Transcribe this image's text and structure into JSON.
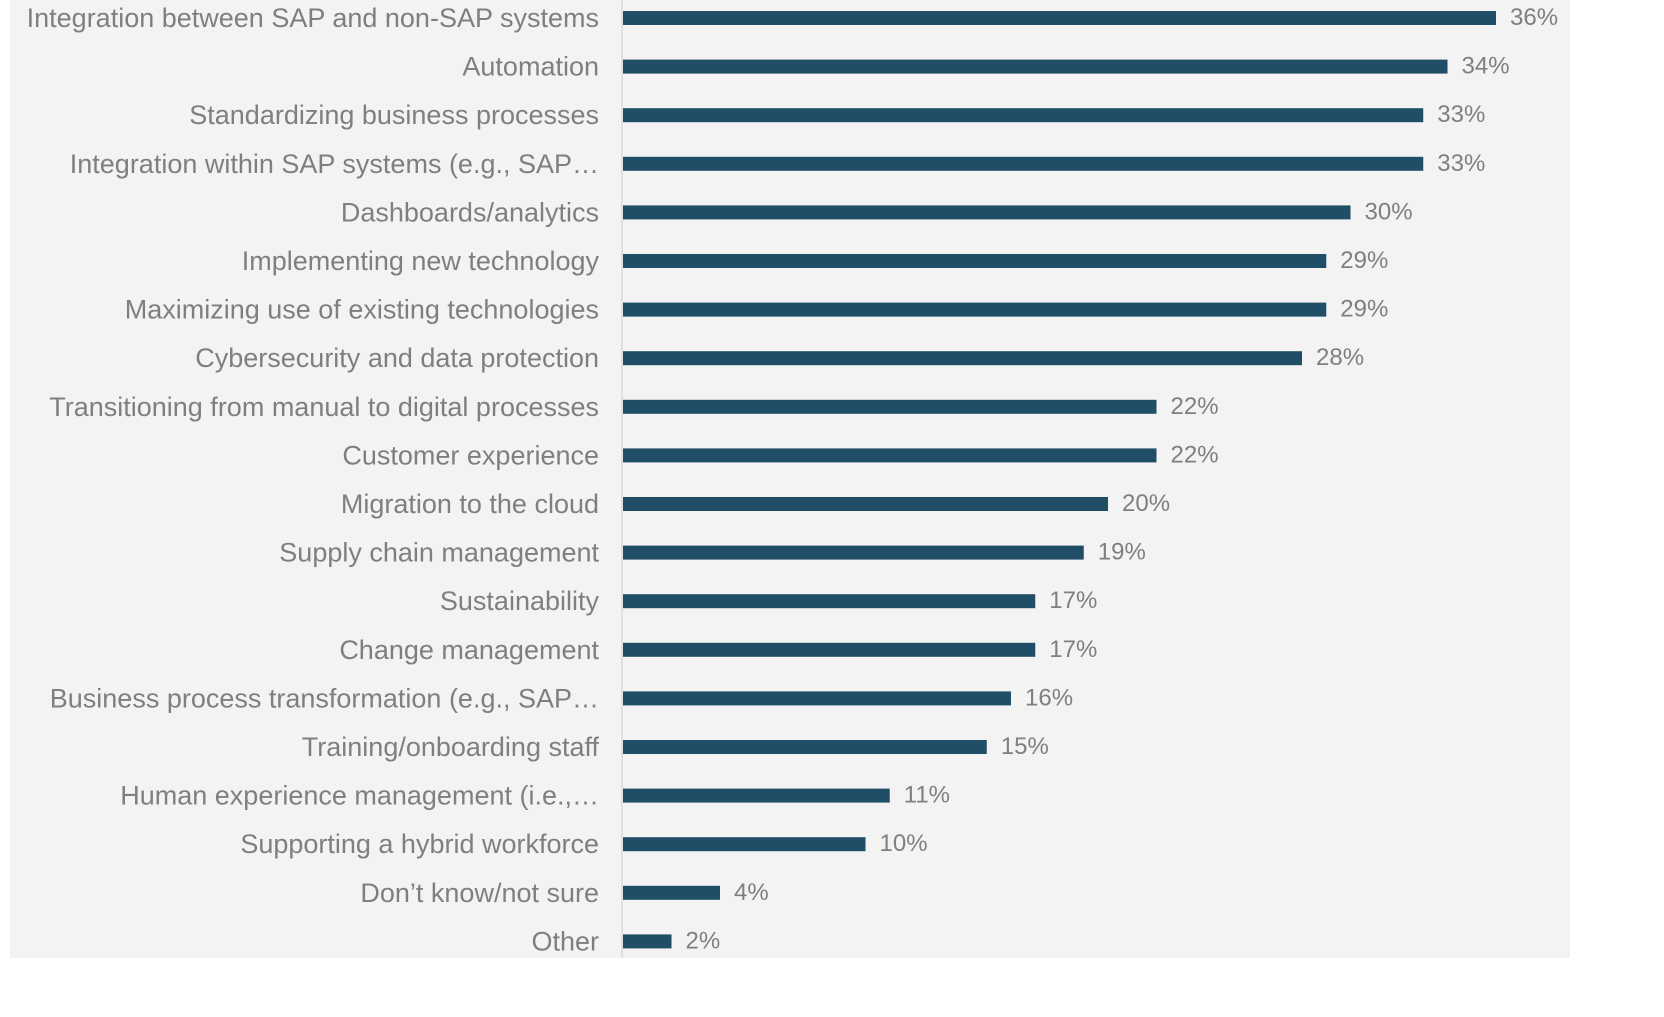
{
  "chart_data": {
    "type": "bar",
    "orientation": "horizontal",
    "categories": [
      "Integration between SAP and non-SAP systems",
      "Automation",
      "Standardizing business processes",
      "Integration within SAP systems (e.g., SAP…",
      "Dashboards/analytics",
      "Implementing new technology",
      "Maximizing use of existing technologies",
      "Cybersecurity and data protection",
      "Transitioning from manual to digital processes",
      "Customer experience",
      "Migration to the cloud",
      "Supply chain management",
      "Sustainability",
      "Change management",
      "Business process transformation (e.g., SAP…",
      "Training/onboarding staff",
      "Human experience management (i.e.,…",
      "Supporting a hybrid workforce",
      "Don’t know/not sure",
      "Other"
    ],
    "values": [
      36,
      34,
      33,
      33,
      30,
      29,
      29,
      28,
      22,
      22,
      20,
      19,
      17,
      17,
      16,
      15,
      11,
      10,
      4,
      2
    ],
    "value_labels": [
      "36%",
      "34%",
      "33%",
      "33%",
      "30%",
      "29%",
      "29%",
      "28%",
      "22%",
      "22%",
      "20%",
      "19%",
      "17%",
      "17%",
      "16%",
      "15%",
      "11%",
      "10%",
      "4%",
      "2%"
    ],
    "unit": "%",
    "xlim": [
      0,
      36
    ],
    "grid": false,
    "legend": "none",
    "colors": {
      "bar": "#1f4e66",
      "label_text": "#7f7f7f",
      "axis_line": "#d9d9d9",
      "background": "#f3f3f3"
    }
  }
}
